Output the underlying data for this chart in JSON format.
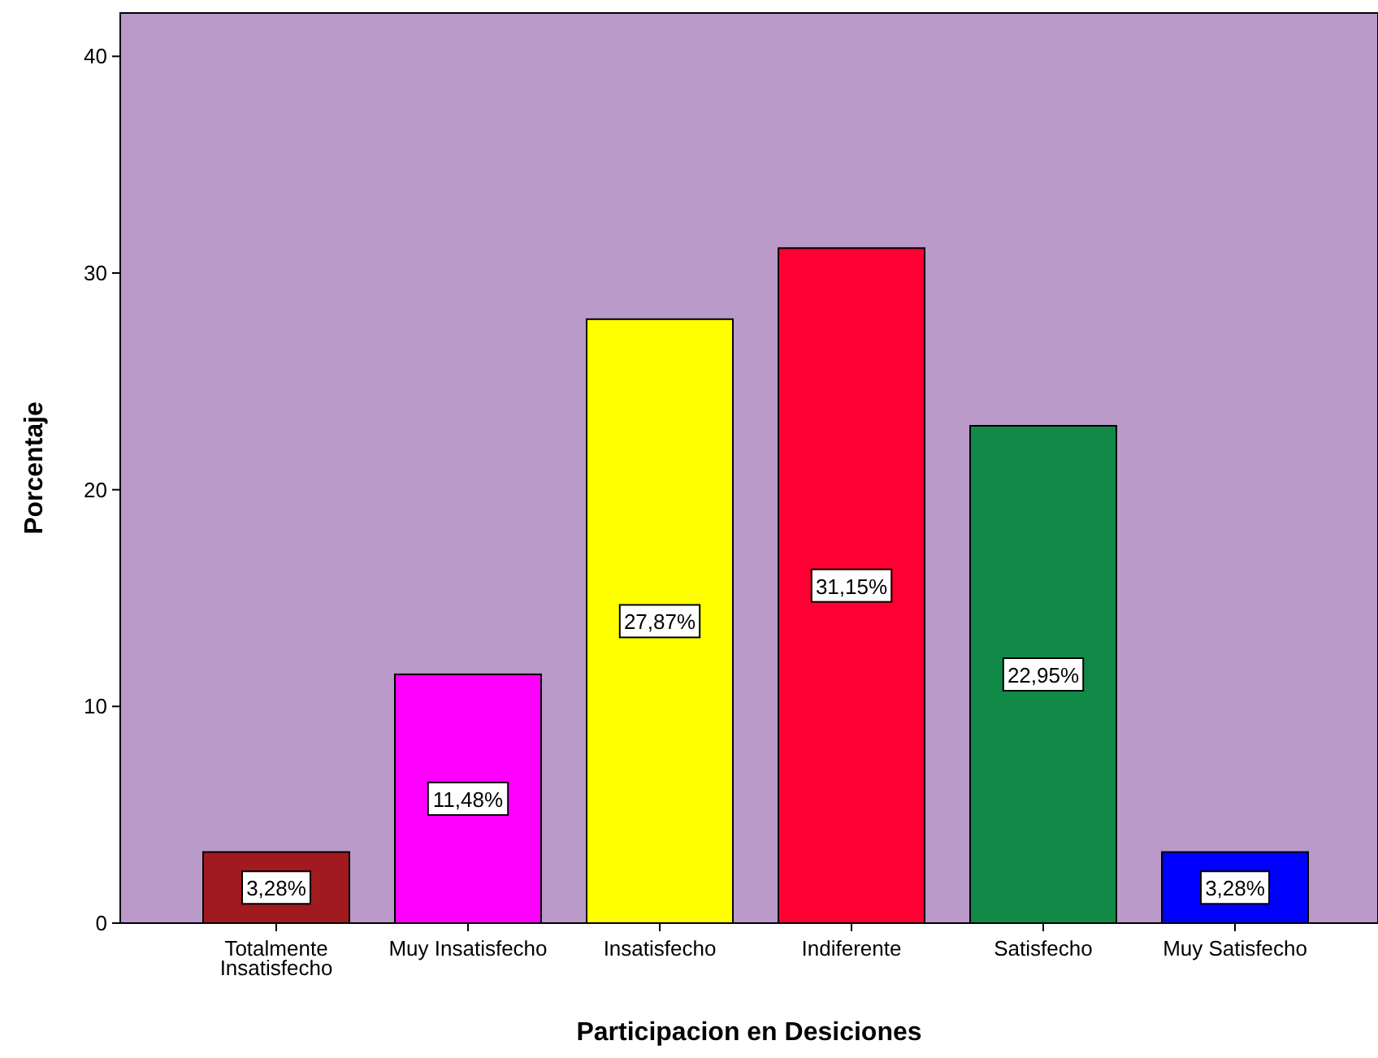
{
  "chart_data": {
    "type": "bar",
    "xlabel": "Participacion en Desiciones",
    "ylabel": "Porcentaje",
    "categories": [
      "Totalmente Insatisfecho",
      "Muy Insatisfecho",
      "Insatisfecho",
      "Indiferente",
      "Satisfecho",
      "Muy Satisfecho"
    ],
    "values": [
      3.28,
      11.48,
      27.87,
      31.15,
      22.95,
      3.28
    ],
    "colors": [
      "#a11a1f",
      "#ff00ff",
      "#ffff00",
      "#ff0033",
      "#118a48",
      "#0000ff"
    ],
    "value_labels": [
      "3,28%",
      "11,48%",
      "27,87%",
      "31,15%",
      "22,95%",
      "3,28%"
    ],
    "ylim": [
      0,
      42
    ],
    "yticks": [
      0,
      10,
      20,
      30,
      40
    ]
  }
}
